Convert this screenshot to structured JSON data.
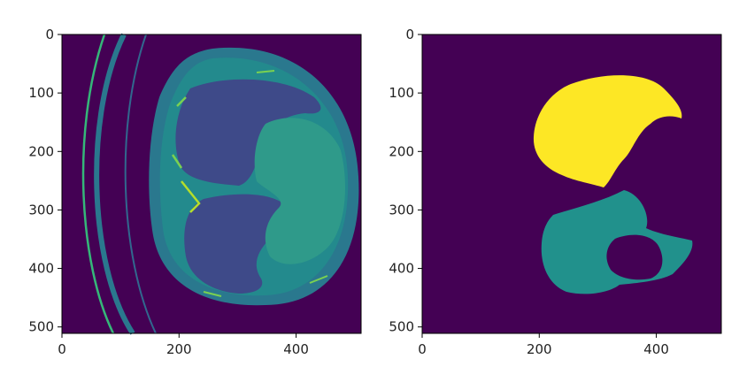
{
  "colors": {
    "background": "#440154",
    "tissue": "#2a788e",
    "bright": "#35b779",
    "rim": "#7ad151",
    "label_a": "#fde725",
    "label_b": "#21918c",
    "axis": "#000000"
  },
  "chart_data": [
    {
      "type": "image",
      "title": "",
      "xlabel": "",
      "ylabel": "",
      "colormap": "viridis",
      "xlim": [
        0,
        511
      ],
      "ylim": [
        511,
        0
      ],
      "x_ticks": [
        "0",
        "200",
        "400"
      ],
      "y_ticks": [
        "0",
        "100",
        "200",
        "300",
        "400",
        "500"
      ],
      "content": "axial CT slice"
    },
    {
      "type": "image",
      "title": "",
      "xlabel": "",
      "ylabel": "",
      "colormap": "viridis",
      "xlim": [
        0,
        511
      ],
      "ylim": [
        511,
        0
      ],
      "x_ticks": [
        "0",
        "200",
        "400"
      ],
      "y_ticks": [
        "0",
        "100",
        "200",
        "300",
        "400",
        "500"
      ],
      "content": "segmentation mask",
      "labels": [
        0,
        1,
        2
      ]
    }
  ]
}
